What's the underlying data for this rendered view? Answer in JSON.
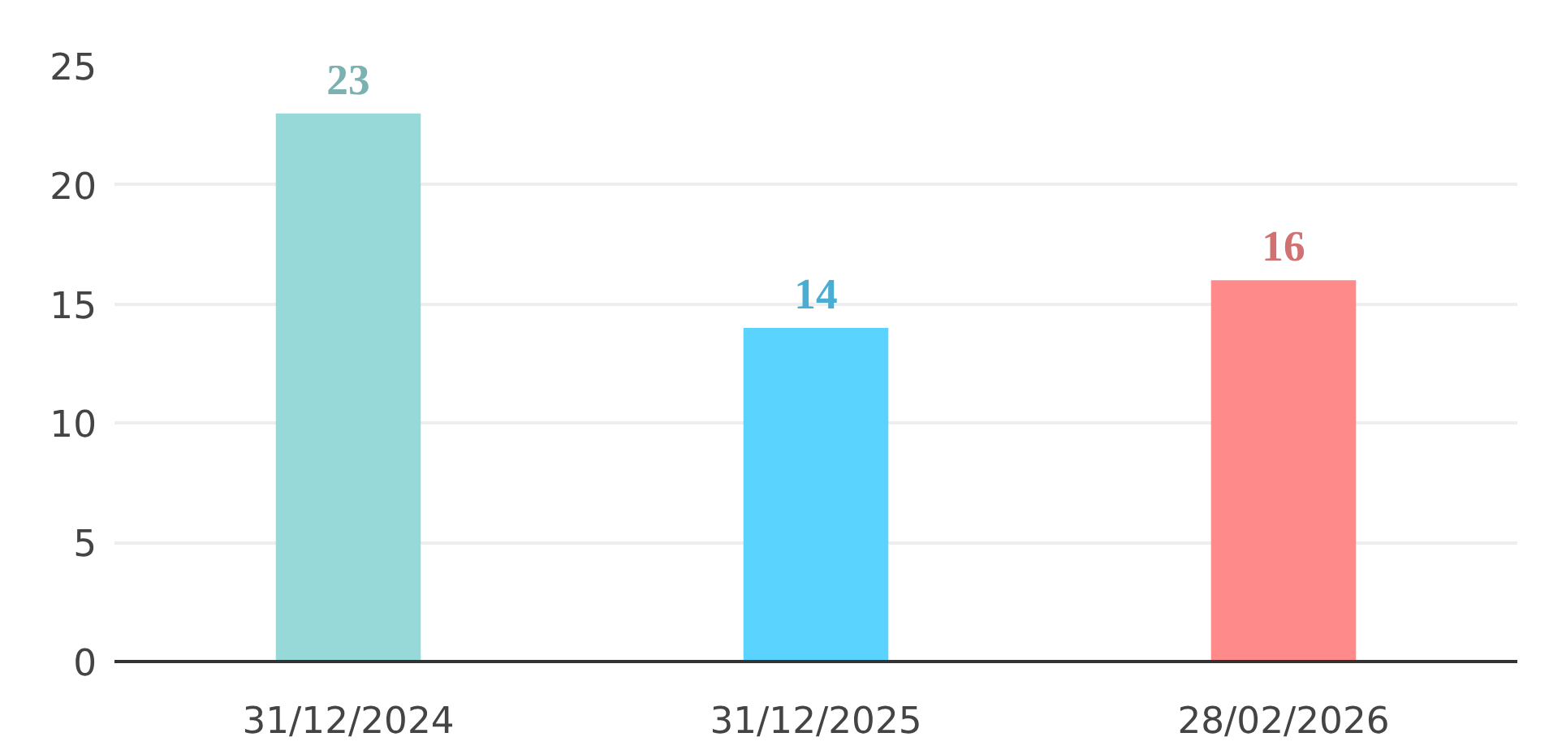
{
  "chart_data": {
    "type": "bar",
    "categories": [
      "31/12/2024",
      "31/12/2025",
      "28/02/2026"
    ],
    "values": [
      23,
      14,
      16
    ],
    "colors": [
      "#97d9d9",
      "#5bd3ff",
      "#ff8a8a"
    ],
    "ylim": [
      0,
      25
    ],
    "yticks": [
      0,
      5,
      10,
      15,
      20,
      25
    ],
    "grid": "y",
    "data_labels": true
  }
}
